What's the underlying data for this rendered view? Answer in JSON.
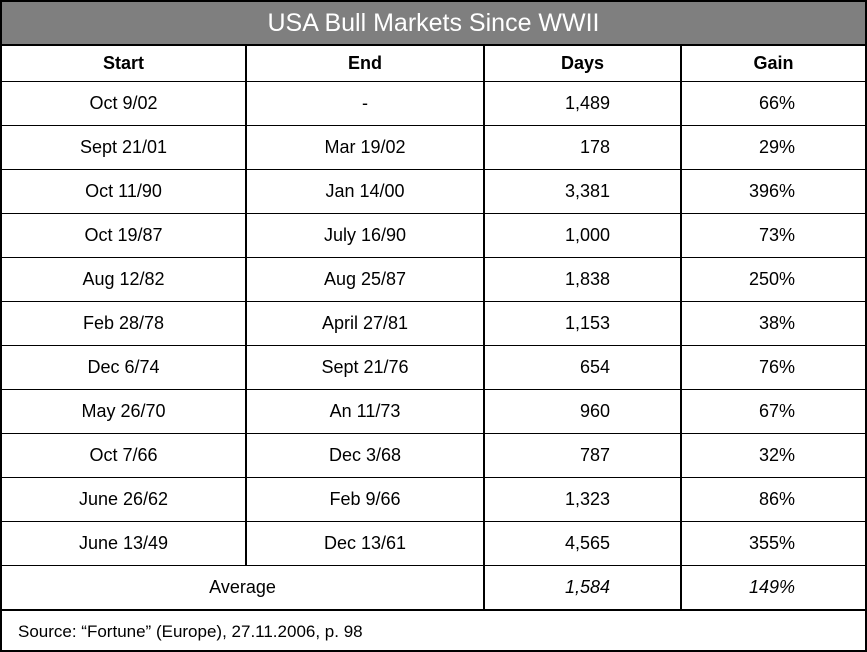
{
  "title": "USA Bull Markets Since WWII",
  "columns": [
    "Start",
    "End",
    "Days",
    "Gain"
  ],
  "rows": [
    {
      "start": "Oct 9/02",
      "end": "-",
      "days": "1,489",
      "gain": "66%"
    },
    {
      "start": "Sept 21/01",
      "end": "Mar 19/02",
      "days": "178",
      "gain": "29%"
    },
    {
      "start": "Oct 11/90",
      "end": "Jan 14/00",
      "days": "3,381",
      "gain": "396%"
    },
    {
      "start": "Oct 19/87",
      "end": "July 16/90",
      "days": "1,000",
      "gain": "73%"
    },
    {
      "start": "Aug 12/82",
      "end": "Aug 25/87",
      "days": "1,838",
      "gain": "250%"
    },
    {
      "start": "Feb 28/78",
      "end": "April 27/81",
      "days": "1,153",
      "gain": "38%"
    },
    {
      "start": "Dec 6/74",
      "end": "Sept 21/76",
      "days": "654",
      "gain": "76%"
    },
    {
      "start": "May 26/70",
      "end": "An 11/73",
      "days": "960",
      "gain": "67%"
    },
    {
      "start": "Oct 7/66",
      "end": "Dec 3/68",
      "days": "787",
      "gain": "32%"
    },
    {
      "start": "June 26/62",
      "end": "Feb 9/66",
      "days": "1,323",
      "gain": "86%"
    },
    {
      "start": "June 13/49",
      "end": "Dec 13/61",
      "days": "4,565",
      "gain": "355%"
    }
  ],
  "average": {
    "label": "Average",
    "days": "1,584",
    "gain": "149%"
  },
  "source": "Source: “Fortune” (Europe), 27.11.2006, p. 98",
  "colors": {
    "title_bar": "#7f7f7f",
    "title_text": "#ffffff",
    "border": "#000000"
  }
}
